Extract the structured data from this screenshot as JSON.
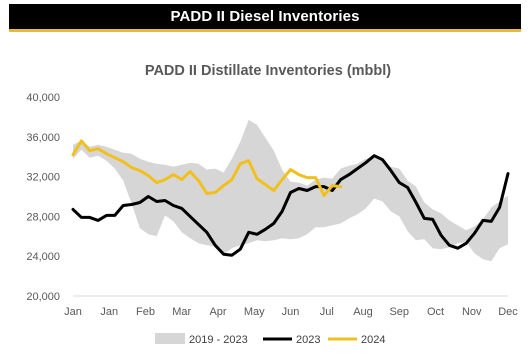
{
  "header": {
    "title": "PADD II Diesel Inventories"
  },
  "colors": {
    "band": "#d6d6d6",
    "series2023": "#000000",
    "series2024": "#f2c01e",
    "banner_bg": "#000000",
    "banner_accent": "#e8b93a"
  },
  "chart_data": {
    "type": "line",
    "title": "PADD II Distillate Inventories (mbbl)",
    "xlabel": "",
    "ylabel": "",
    "ylim": [
      20000,
      40000
    ],
    "yticks": [
      "20,000",
      "24,000",
      "28,000",
      "32,000",
      "36,000",
      "40,000"
    ],
    "xticks": [
      "Jan",
      "Jan",
      "Feb",
      "Mar",
      "Apr",
      "May",
      "Jun",
      "Jul",
      "Aug",
      "Sep",
      "Oct",
      "Nov",
      "Dec"
    ],
    "x_weeks": 53,
    "grid": false,
    "legend_position": "bottom",
    "band": {
      "name": "2019 - 2023",
      "high": [
        35200,
        35600,
        35000,
        35200,
        35000,
        34700,
        34400,
        34300,
        33800,
        33500,
        33300,
        33200,
        33000,
        33200,
        33400,
        33300,
        32700,
        32800,
        32400,
        33800,
        35500,
        37700,
        37200,
        35900,
        34600,
        32700,
        31500,
        31400,
        31100,
        31700,
        31900,
        31800,
        32800,
        33100,
        33300,
        33800,
        33900,
        33600,
        33000,
        32800,
        31600,
        31000,
        29400,
        28700,
        28300,
        27600,
        27100,
        26600,
        27000,
        27700,
        28900,
        29500,
        30100
      ],
      "low": [
        33800,
        34700,
        33900,
        34100,
        33600,
        32800,
        31600,
        29300,
        26800,
        26200,
        26000,
        28100,
        27500,
        26400,
        25800,
        25300,
        25100,
        25000,
        24200,
        24800,
        25100,
        25300,
        25600,
        25500,
        25600,
        25800,
        25700,
        25800,
        26200,
        26900,
        26900,
        27100,
        27300,
        27800,
        28200,
        28800,
        29800,
        29500,
        28500,
        28000,
        26500,
        25600,
        25700,
        24800,
        24700,
        24900,
        25300,
        25400,
        24300,
        23700,
        23500,
        24800,
        25200
      ]
    },
    "series": [
      {
        "name": "2023",
        "values": [
          28700,
          27900,
          27900,
          27600,
          28100,
          28100,
          29100,
          29200,
          29400,
          30000,
          29500,
          29600,
          29100,
          28800,
          28000,
          27200,
          26400,
          25100,
          24200,
          24100,
          24700,
          26400,
          26200,
          26700,
          27300,
          28500,
          30400,
          30800,
          30600,
          31000,
          31000,
          30600,
          31700,
          32200,
          32800,
          33400,
          34100,
          33700,
          32600,
          31400,
          30900,
          29400,
          27800,
          27700,
          26100,
          25100,
          24800,
          25300,
          26300,
          27600,
          27500,
          28900,
          32300
        ]
      },
      {
        "name": "2024",
        "values": [
          34200,
          35600,
          34600,
          34800,
          34300,
          33900,
          33500,
          32900,
          32600,
          32100,
          31400,
          31700,
          32200,
          31700,
          32500,
          31600,
          30300,
          30400,
          31100,
          31700,
          33300,
          33600,
          31800,
          31200,
          30600,
          31700,
          32700,
          32200,
          31900,
          31900,
          30100,
          31100,
          31000
        ]
      }
    ]
  }
}
